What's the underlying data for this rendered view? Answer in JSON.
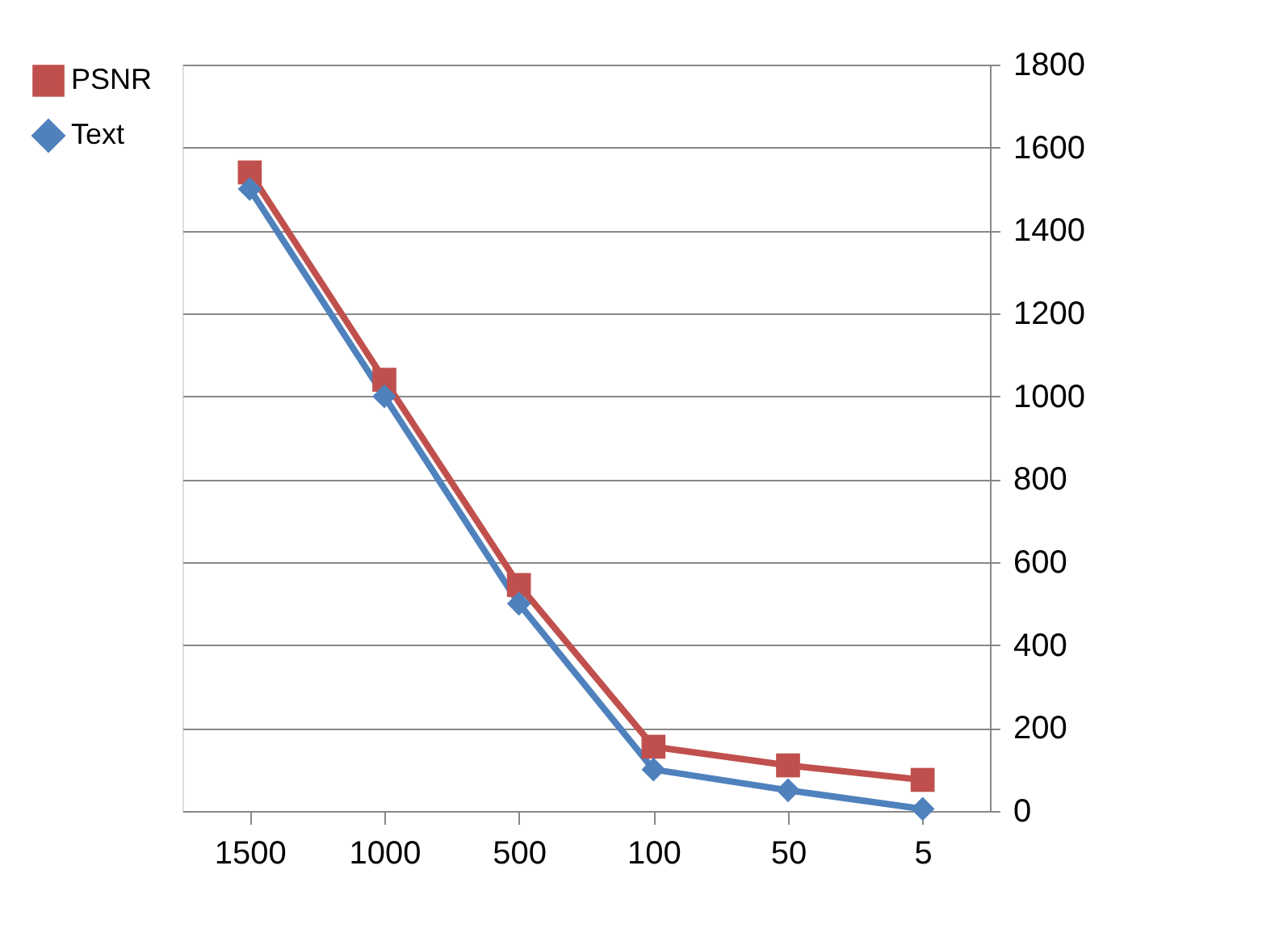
{
  "chart_data": {
    "type": "line",
    "categories": [
      "1500",
      "1000",
      "500",
      "100",
      "50",
      "5"
    ],
    "series": [
      {
        "name": "PSNR",
        "color": "#c0504d",
        "marker": "square",
        "values": [
          1540,
          1040,
          545,
          155,
          110,
          75
        ]
      },
      {
        "name": "Text",
        "color": "#4f81bd",
        "marker": "diamond",
        "values": [
          1500,
          1000,
          500,
          100,
          50,
          5
        ]
      }
    ],
    "ylim": [
      0,
      1800
    ],
    "yticks": [
      0,
      200,
      400,
      600,
      800,
      1000,
      1200,
      1400,
      1600,
      1800
    ],
    "grid": "y",
    "legend": "left",
    "line_style": "solid"
  }
}
